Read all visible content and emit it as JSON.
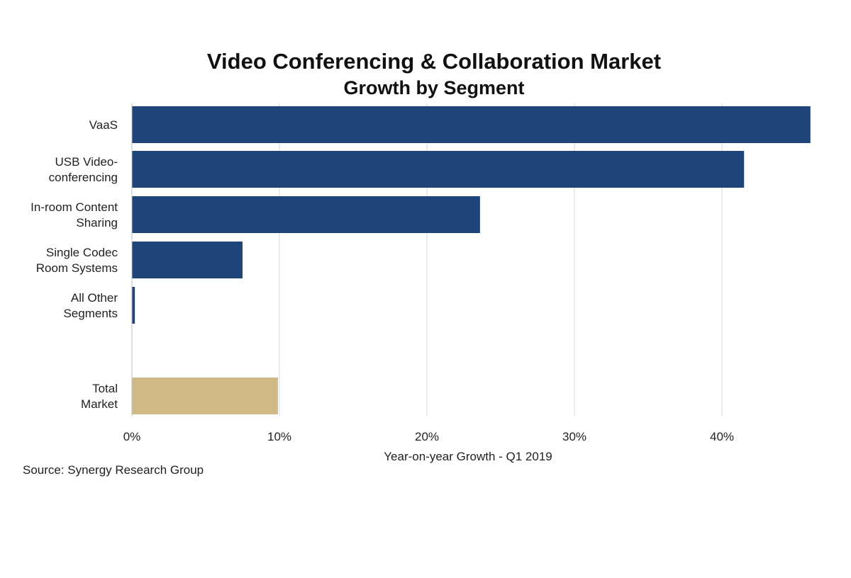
{
  "chart_data": {
    "type": "bar",
    "orientation": "horizontal",
    "title": "Video Conferencing & Collaboration Market",
    "subtitle": "Growth by Segment",
    "xlabel": "Year-on-year  Growth - Q1 2019",
    "ylabel": "",
    "categories": [
      [
        "VaaS"
      ],
      [
        "USB Video-",
        "conferencing"
      ],
      [
        "In-room Content",
        "Sharing"
      ],
      [
        "Single Codec",
        "Room Systems"
      ],
      [
        "All Other",
        "Segments"
      ],
      [
        "Total",
        "Market"
      ]
    ],
    "values": [
      46,
      41.5,
      23.6,
      7.5,
      0.2,
      9.9
    ],
    "gap_before_index": 5,
    "xlim": [
      0,
      46
    ],
    "xticks": [
      0,
      10,
      20,
      30,
      40
    ],
    "xtick_labels": [
      "0%",
      "10%",
      "20%",
      "30%",
      "40%"
    ],
    "grid": true,
    "colors": {
      "segment_bar": "#1f4479",
      "total_bar": "#cfb987"
    },
    "source": "Source: Synergy Research Group"
  }
}
